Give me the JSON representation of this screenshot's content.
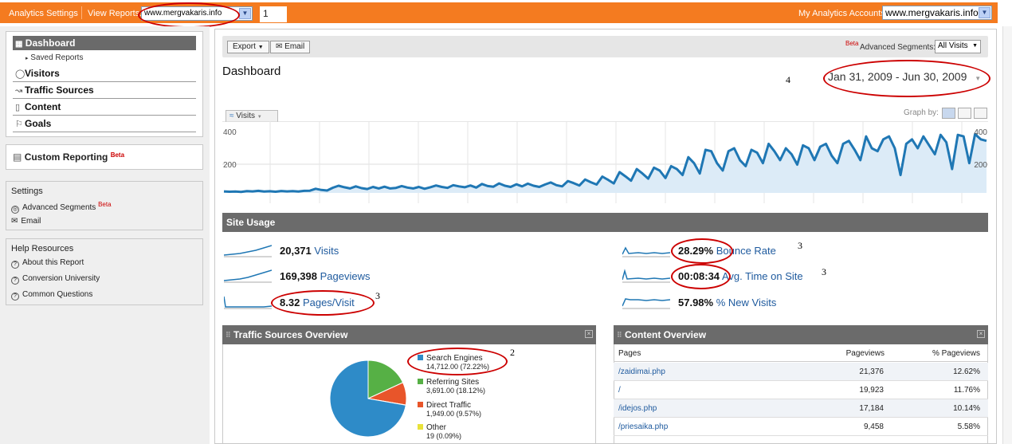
{
  "topbar": {
    "analytics_settings": "Analytics Settings",
    "view_reports_label": "View Reports:",
    "view_reports_value": "www.mergvakaris.info",
    "marker": "1",
    "my_accounts_label": "My Analytics Accounts:",
    "my_accounts_value": "www.mergvakaris.info"
  },
  "sidebar": {
    "dashboard": "Dashboard",
    "saved_reports": "Saved Reports",
    "items": [
      {
        "label": "Visitors",
        "icon": "person-icon"
      },
      {
        "label": "Traffic Sources",
        "icon": "traffic-icon"
      },
      {
        "label": "Content",
        "icon": "page-icon"
      },
      {
        "label": "Goals",
        "icon": "flag-icon"
      }
    ],
    "custom_reporting": "Custom Reporting",
    "beta": "Beta",
    "settings": {
      "title": "Settings",
      "advanced_segments": "Advanced Segments",
      "email": "Email"
    },
    "help": {
      "title": "Help Resources",
      "items": [
        "About this Report",
        "Conversion University",
        "Common Questions"
      ]
    }
  },
  "toolbar": {
    "export": "Export",
    "email": "Email",
    "beta": "Beta",
    "advanced_segments_label": "Advanced Segments:",
    "advanced_segments_value": "All Visits"
  },
  "main": {
    "title": "Dashboard",
    "marker": "4",
    "date_range": "Jan 31, 2009 - Jun 30, 2009",
    "chart_tab": "Visits",
    "graph_by": "Graph by:"
  },
  "chart_data": {
    "type": "area",
    "ylabel": "",
    "yticks": [
      400,
      200
    ],
    "ylim": [
      0,
      450
    ],
    "values": [
      10,
      8,
      9,
      7,
      12,
      10,
      14,
      9,
      11,
      8,
      13,
      10,
      12,
      9,
      14,
      15,
      28,
      20,
      16,
      35,
      48,
      38,
      30,
      44,
      32,
      26,
      40,
      30,
      42,
      30,
      34,
      46,
      36,
      30,
      40,
      28,
      38,
      50,
      40,
      34,
      52,
      44,
      38,
      50,
      36,
      60,
      46,
      42,
      64,
      48,
      40,
      58,
      44,
      62,
      48,
      40,
      56,
      70,
      52,
      44,
      80,
      66,
      50,
      90,
      72,
      56,
      110,
      88,
      64,
      140,
      112,
      82,
      160,
      130,
      96,
      170,
      150,
      100,
      180,
      160,
      120,
      240,
      200,
      130,
      290,
      280,
      200,
      150,
      280,
      300,
      220,
      180,
      290,
      270,
      200,
      330,
      280,
      220,
      300,
      260,
      190,
      320,
      300,
      220,
      310,
      330,
      250,
      200,
      330,
      350,
      290,
      220,
      380,
      300,
      280,
      360,
      380,
      300,
      120,
      330,
      360,
      300,
      380,
      320,
      260,
      390,
      340,
      160,
      390,
      380,
      200,
      395,
      360,
      350
    ]
  },
  "site_usage": {
    "title": "Site Usage",
    "marker": "3",
    "metrics": [
      {
        "value": "20,371",
        "label": "Visits"
      },
      {
        "value": "169,398",
        "label": "Pageviews"
      },
      {
        "value": "8.32",
        "label": "Pages/Visit"
      },
      {
        "value": "28.29%",
        "label": "Bounce Rate"
      },
      {
        "value": "00:08:34",
        "label": "Avg. Time on Site"
      },
      {
        "value": "57.98%",
        "label": "% New Visits"
      }
    ]
  },
  "traffic_sources": {
    "title": "Traffic Sources Overview",
    "marker": "2",
    "pie": [
      {
        "name": "Search Engines",
        "value": 14712,
        "label": "14,712.00 (72.22%)",
        "color": "#2e8bc8"
      },
      {
        "name": "Referring Sites",
        "value": 3691,
        "label": "3,691.00 (18.12%)",
        "color": "#56b045"
      },
      {
        "name": "Direct Traffic",
        "value": 1949,
        "label": "1,949.00 (9.57%)",
        "color": "#e8552a"
      },
      {
        "name": "Other",
        "value": 19,
        "label": "19 (0.09%)",
        "color": "#e8e23a"
      }
    ]
  },
  "content_overview": {
    "title": "Content Overview",
    "headers": [
      "Pages",
      "Pageviews",
      "% Pageviews"
    ],
    "rows": [
      {
        "page": "/zaidimai.php",
        "views": "21,376",
        "pct": "12.62%"
      },
      {
        "page": "/",
        "views": "19,923",
        "pct": "11.76%"
      },
      {
        "page": "/idejos.php",
        "views": "17,184",
        "pct": "10.14%"
      },
      {
        "page": "/priesaika.php",
        "views": "9,458",
        "pct": "5.58%"
      }
    ]
  }
}
